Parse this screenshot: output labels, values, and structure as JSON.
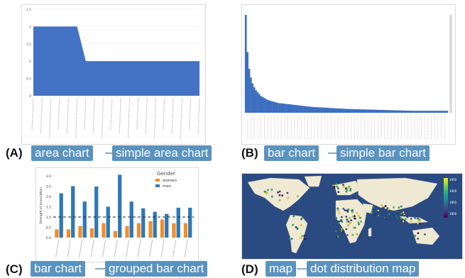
{
  "panels": [
    {
      "letter": "(A)",
      "tags": [
        "area chart",
        "simple area chart"
      ]
    },
    {
      "letter": "(B)",
      "tags": [
        "bar chart",
        "simple bar chart"
      ]
    },
    {
      "letter": "(C)",
      "tags": [
        "bar chart",
        "grouped bar chart"
      ]
    },
    {
      "letter": "(D)",
      "tags": [
        "map",
        "dot distribution map"
      ]
    }
  ],
  "colors": {
    "tag_bg": "#5b93bf",
    "area": "#4472c4",
    "bar": "#3d6fc0",
    "women": "#f28e2b",
    "men": "#2e78b7",
    "ocean": "#2a4a82",
    "land": "#efe9d3"
  },
  "chart_data": [
    {
      "type": "area",
      "x_count": 20,
      "values": [
        2,
        2,
        2,
        2,
        2,
        2,
        1,
        1,
        1,
        1,
        1,
        1,
        1,
        1,
        1,
        1,
        1,
        1,
        1,
        1
      ],
      "yticks": [
        "0",
        "0.5",
        "1",
        "1.5",
        "2",
        "2.5"
      ],
      "ylim": [
        0,
        2.5
      ]
    },
    {
      "type": "bar",
      "x_count": 120,
      "note_values": "rapidly decaying distribution",
      "values": [
        100,
        62,
        45,
        36,
        30,
        26,
        23,
        21,
        19,
        17,
        16,
        15,
        14,
        13,
        12.5,
        12,
        11.5,
        11,
        10.5,
        10,
        9.8,
        9.6,
        9.4,
        9.2,
        9,
        8.8,
        8.6,
        8.4,
        8.2,
        8,
        7.8,
        7.6,
        7.4,
        7.2,
        7,
        6.8,
        6.6,
        6.4,
        6.2,
        6,
        5.9,
        5.8,
        5.7,
        5.6,
        5.5,
        5.4,
        5.3,
        5.2,
        5.1,
        5,
        4.9,
        4.8,
        4.7,
        4.6,
        4.5,
        4.4,
        4.3,
        4.2,
        4.1,
        4,
        3.9,
        3.9,
        3.8,
        3.8,
        3.7,
        3.7,
        3.6,
        3.6,
        3.5,
        3.5,
        3.4,
        3.4,
        3.3,
        3.3,
        3.2,
        3.2,
        3.1,
        3.1,
        3,
        3,
        2.9,
        2.9,
        2.8,
        2.8,
        2.7,
        2.7,
        2.6,
        2.6,
        2.5,
        2.5,
        2.4,
        2.4,
        2.3,
        2.3,
        2.2,
        2.2,
        2.1,
        2.1,
        2,
        2,
        2,
        2,
        2,
        2,
        2,
        2,
        2,
        2,
        2,
        2,
        2,
        2,
        2,
        2,
        2,
        2,
        2,
        2,
        2,
        2
      ],
      "ylim": [
        0,
        100
      ]
    },
    {
      "type": "bar",
      "legend_title": "Gender",
      "legend_position": "top-right",
      "series": [
        {
          "name": "women",
          "values": [
            0.4,
            0.4,
            0.56,
            0.45,
            0.7,
            0.32,
            0.56,
            0.7,
            0.8,
            0.88,
            0.7,
            0.7
          ]
        },
        {
          "name": "men",
          "values": [
            2.15,
            2.5,
            1.75,
            2.48,
            1.5,
            3.05,
            1.75,
            1.42,
            1.25,
            1.15,
            1.45,
            1.45
          ]
        }
      ],
      "yticks": [
        "0.0",
        "0.5",
        "1.0",
        "1.5",
        "2.0",
        "2.5",
        "3.0"
      ],
      "ylabel": "Strength of association",
      "ylim": [
        0,
        3.1
      ],
      "reference_line": 1.0
    },
    {
      "type": "scatter",
      "colorbar_ticks": [
        "1950",
        "1900",
        "1850",
        "1800"
      ]
    }
  ]
}
